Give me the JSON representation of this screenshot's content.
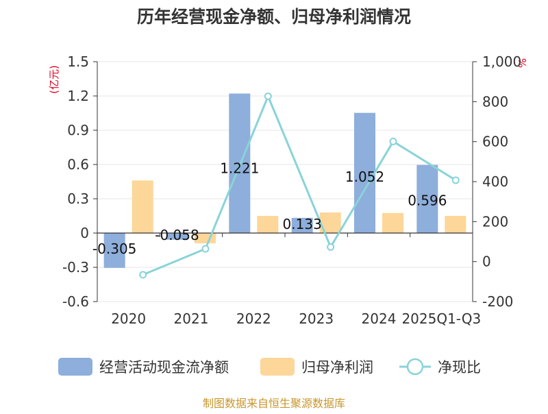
{
  "chart_data": {
    "type": "bar",
    "title": "历年经营现金净额、归母净利润情况",
    "categories": [
      "2020",
      "2021",
      "2022",
      "2023",
      "2024",
      "2025Q1-Q3"
    ],
    "left_axis": {
      "unit": "(亿元)",
      "range": [
        -0.6,
        1.5
      ],
      "ticks": [
        "1.5",
        "1.2",
        "0.9",
        "0.6",
        "0.3",
        "0",
        "-0.3",
        "-0.6"
      ]
    },
    "right_axis": {
      "unit": "%",
      "range": [
        -200,
        1000
      ],
      "ticks": [
        "1,000",
        "800",
        "600",
        "400",
        "200",
        "0",
        "-200"
      ]
    },
    "series": [
      {
        "name": "经营活动现金流净额",
        "type": "bar",
        "axis": "left",
        "color": "#8eaedb",
        "values": [
          -0.305,
          -0.058,
          1.221,
          0.133,
          1.052,
          0.596
        ],
        "labels": [
          "-0.305",
          "-0.058",
          "1.221",
          "0.133",
          "1.052",
          "0.596"
        ]
      },
      {
        "name": "归母净利润",
        "type": "bar",
        "axis": "left",
        "color": "#fdd699",
        "values": [
          0.46,
          -0.09,
          0.15,
          0.18,
          0.175,
          0.15
        ]
      },
      {
        "name": "净现比",
        "type": "line",
        "axis": "right",
        "color": "#89d3d8",
        "values": [
          -66,
          64,
          827,
          73,
          601,
          407
        ]
      }
    ],
    "grid": true,
    "legend_position": "bottom"
  },
  "footer": {
    "source": "制图数据来自恒生聚源数据库"
  }
}
